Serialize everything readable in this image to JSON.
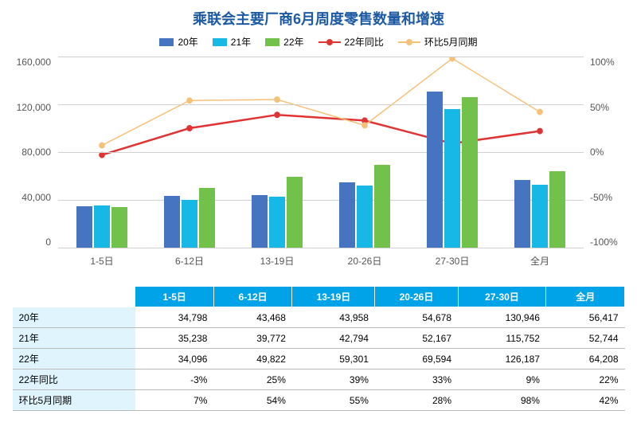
{
  "title": {
    "text": "乘联会主要厂商6月周度零售数量和增速",
    "color": "#1c5aa3",
    "fontsize": 18
  },
  "legend": {
    "items": [
      {
        "label": "20年",
        "type": "bar",
        "color": "#4674c1"
      },
      {
        "label": "21年",
        "type": "bar",
        "color": "#18b8e6"
      },
      {
        "label": "22年",
        "type": "bar",
        "color": "#71c14b"
      },
      {
        "label": "22年同比",
        "type": "line",
        "color": "#e03434"
      },
      {
        "label": "环比5月同期",
        "type": "line",
        "color": "#f5c178"
      }
    ]
  },
  "chart": {
    "type": "bar+line",
    "categories": [
      "1-5日",
      "6-12日",
      "13-19日",
      "20-26日",
      "27-30日",
      "全月"
    ],
    "left_axis": {
      "min": 0,
      "max": 160000,
      "step": 40000,
      "ticks": [
        "160,000",
        "120,000",
        "80,000",
        "40,000",
        "0"
      ]
    },
    "right_axis": {
      "min": -100,
      "max": 100,
      "step": 50,
      "ticks": [
        "100%",
        "50%",
        "0%",
        "-50%",
        "-100%"
      ]
    },
    "series_bars": [
      {
        "name": "20年",
        "color": "#4674c1",
        "values": [
          34798,
          43468,
          43958,
          54678,
          130946,
          56417
        ]
      },
      {
        "name": "21年",
        "color": "#18b8e6",
        "values": [
          35238,
          39772,
          42794,
          52167,
          115752,
          52744
        ]
      },
      {
        "name": "22年",
        "color": "#71c14b",
        "values": [
          34096,
          49822,
          59301,
          69594,
          126187,
          64208
        ]
      }
    ],
    "series_lines": [
      {
        "name": "22年同比",
        "color": "#e03434",
        "marker": "circle",
        "values": [
          -3,
          25,
          39,
          33,
          9,
          22
        ],
        "width": 2.5
      },
      {
        "name": "环比5月同期",
        "color": "#f5c178",
        "marker": "circle",
        "values": [
          7,
          54,
          55,
          28,
          98,
          42
        ],
        "width": 1.5
      }
    ],
    "background_color": "#ffffff",
    "grid_color": "#d0d0d0"
  },
  "table": {
    "header_bg": "#00a2e8",
    "header_fg": "#ffffff",
    "rowlabel_bg": "#dff4fd",
    "columns": [
      "",
      "1-5日",
      "6-12日",
      "13-19日",
      "20-26日",
      "27-30日",
      "全月"
    ],
    "rows": [
      {
        "label": "20年",
        "cells": [
          "34,798",
          "43,468",
          "43,958",
          "54,678",
          "130,946",
          "56,417"
        ]
      },
      {
        "label": "21年",
        "cells": [
          "35,238",
          "39,772",
          "42,794",
          "52,167",
          "115,752",
          "52,744"
        ]
      },
      {
        "label": "22年",
        "cells": [
          "34,096",
          "49,822",
          "59,301",
          "69,594",
          "126,187",
          "64,208"
        ]
      },
      {
        "label": "22年同比",
        "cells": [
          "-3%",
          "25%",
          "39%",
          "33%",
          "9%",
          "22%"
        ]
      },
      {
        "label": "环比5月同期",
        "cells": [
          "7%",
          "54%",
          "55%",
          "28%",
          "98%",
          "42%"
        ]
      }
    ]
  }
}
